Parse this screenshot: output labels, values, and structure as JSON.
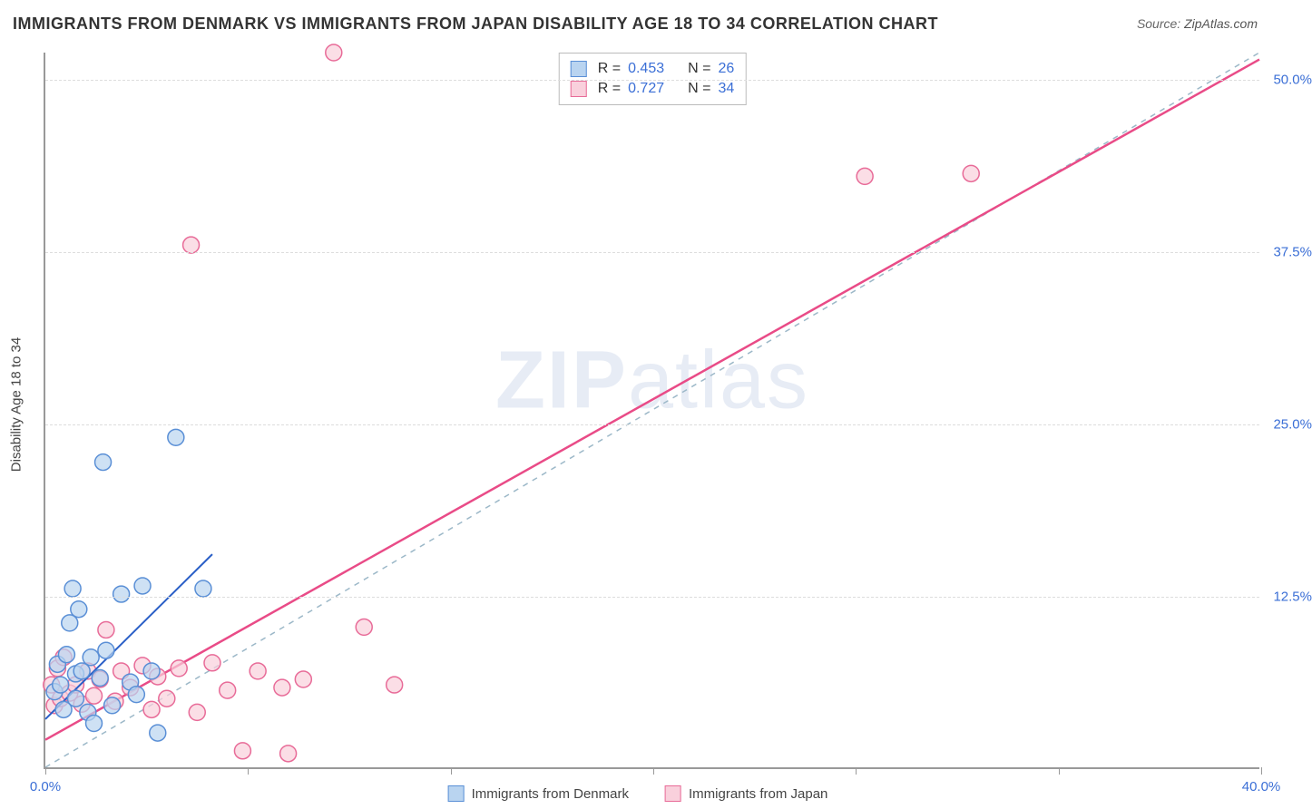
{
  "title": "IMMIGRANTS FROM DENMARK VS IMMIGRANTS FROM JAPAN DISABILITY AGE 18 TO 34 CORRELATION CHART",
  "source_label": "Source:",
  "source_value": "ZipAtlas.com",
  "y_axis_title": "Disability Age 18 to 34",
  "watermark": {
    "bold": "ZIP",
    "light": "atlas"
  },
  "chart": {
    "type": "scatter-correlation",
    "xlim": [
      0,
      40
    ],
    "ylim": [
      0,
      52
    ],
    "x_ticks": [
      0,
      6.67,
      13.33,
      20,
      26.67,
      33.33,
      40
    ],
    "x_tick_labels": {
      "0": "0.0%",
      "40": "40.0%"
    },
    "y_ticks": [
      12.5,
      25.0,
      37.5,
      50.0
    ],
    "y_tick_labels": [
      "12.5%",
      "25.0%",
      "37.5%",
      "50.0%"
    ],
    "grid_color": "#dddddd",
    "axis_color": "#999999",
    "background_color": "#ffffff",
    "identity_line": {
      "color": "#9cb8c8",
      "dash": "6,6",
      "width": 1.5,
      "from": [
        0,
        0
      ],
      "to": [
        40,
        52
      ]
    },
    "series": [
      {
        "name": "Immigrants from Denmark",
        "marker_fill": "#b9d4f0",
        "marker_stroke": "#5a8fd6",
        "marker_radius": 9,
        "line_color": "#2a5fc7",
        "line_width": 2,
        "R": "0.453",
        "N": "26",
        "regression": {
          "from": [
            0,
            3.5
          ],
          "to": [
            5.5,
            15.5
          ]
        },
        "points": [
          [
            0.3,
            5.5
          ],
          [
            0.4,
            7.5
          ],
          [
            0.5,
            6.0
          ],
          [
            0.6,
            4.2
          ],
          [
            0.7,
            8.2
          ],
          [
            0.8,
            10.5
          ],
          [
            0.9,
            13.0
          ],
          [
            1.0,
            6.8
          ],
          [
            1.0,
            5.0
          ],
          [
            1.1,
            11.5
          ],
          [
            1.2,
            7.0
          ],
          [
            1.4,
            4.0
          ],
          [
            1.5,
            8.0
          ],
          [
            1.6,
            3.2
          ],
          [
            1.8,
            6.5
          ],
          [
            1.9,
            22.2
          ],
          [
            2.0,
            8.5
          ],
          [
            2.2,
            4.5
          ],
          [
            2.5,
            12.6
          ],
          [
            2.8,
            6.2
          ],
          [
            3.0,
            5.3
          ],
          [
            3.2,
            13.2
          ],
          [
            3.5,
            7.0
          ],
          [
            3.7,
            2.5
          ],
          [
            4.3,
            24.0
          ],
          [
            5.2,
            13.0
          ]
        ]
      },
      {
        "name": "Immigrants from Japan",
        "marker_fill": "#f9d0dc",
        "marker_stroke": "#e86b98",
        "marker_radius": 9,
        "line_color": "#e94b87",
        "line_width": 2.5,
        "R": "0.727",
        "N": "34",
        "regression": {
          "from": [
            0,
            2.0
          ],
          "to": [
            40,
            51.5
          ]
        },
        "points": [
          [
            0.2,
            6.0
          ],
          [
            0.3,
            4.5
          ],
          [
            0.4,
            7.2
          ],
          [
            0.5,
            5.0
          ],
          [
            0.6,
            8.0
          ],
          [
            0.8,
            5.4
          ],
          [
            1.0,
            6.0
          ],
          [
            1.2,
            4.6
          ],
          [
            1.4,
            7.0
          ],
          [
            1.6,
            5.2
          ],
          [
            1.8,
            6.4
          ],
          [
            2.0,
            10.0
          ],
          [
            2.3,
            4.8
          ],
          [
            2.5,
            7.0
          ],
          [
            2.8,
            5.8
          ],
          [
            3.2,
            7.4
          ],
          [
            3.5,
            4.2
          ],
          [
            3.7,
            6.6
          ],
          [
            4.0,
            5.0
          ],
          [
            4.4,
            7.2
          ],
          [
            5.0,
            4.0
          ],
          [
            5.5,
            7.6
          ],
          [
            6.0,
            5.6
          ],
          [
            6.5,
            1.2
          ],
          [
            7.0,
            7.0
          ],
          [
            7.8,
            5.8
          ],
          [
            8.5,
            6.4
          ],
          [
            9.5,
            52.0
          ],
          [
            10.5,
            10.2
          ],
          [
            11.5,
            6.0
          ],
          [
            4.8,
            38.0
          ],
          [
            27.0,
            43.0
          ],
          [
            30.5,
            43.2
          ],
          [
            8.0,
            1.0
          ]
        ]
      }
    ],
    "legend_top": {
      "r_label": "R =",
      "n_label": "N ="
    },
    "legend_bottom": {
      "items": [
        "Immigrants from Denmark",
        "Immigrants from Japan"
      ]
    }
  }
}
